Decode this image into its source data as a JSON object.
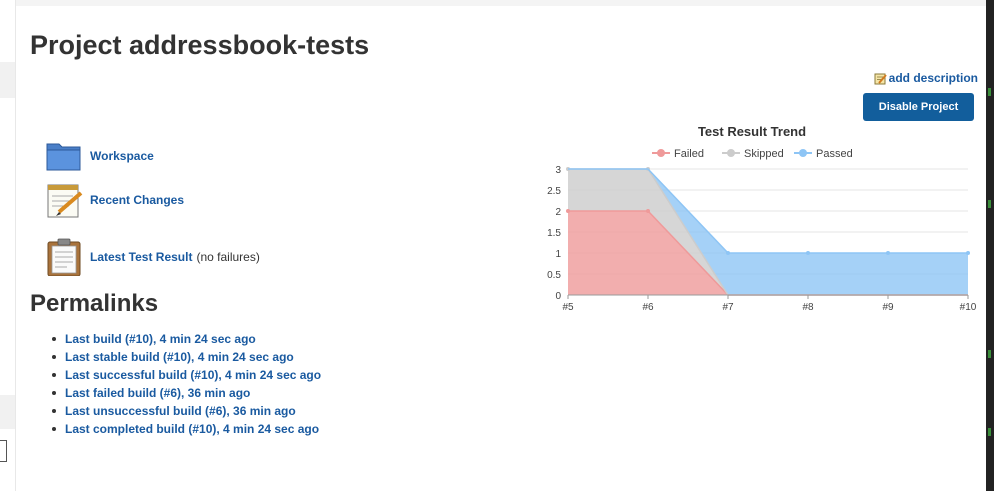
{
  "page": {
    "title": "Project addressbook-tests",
    "add_description": "add description",
    "disable_button": "Disable Project"
  },
  "tasks": [
    {
      "label": "Workspace",
      "icon": "folder-icon",
      "extra": ""
    },
    {
      "label": "Recent Changes",
      "icon": "notepad-icon",
      "extra": ""
    },
    {
      "label": "Latest Test Result",
      "icon": "clipboard-icon",
      "extra": "(no failures)"
    }
  ],
  "permalinks": {
    "title": "Permalinks",
    "items": [
      "Last build (#10), 4 min 24 sec ago",
      "Last stable build (#10), 4 min 24 sec ago",
      "Last successful build (#10), 4 min 24 sec ago",
      "Last failed build (#6), 36 min ago",
      "Last unsuccessful build (#6), 36 min ago",
      "Last completed build (#10), 4 min 24 sec ago"
    ]
  },
  "chart_data": {
    "type": "area",
    "title": "Test Result Trend",
    "categories": [
      "#5",
      "#6",
      "#7",
      "#8",
      "#9",
      "#10"
    ],
    "stacked": true,
    "ylim": [
      0,
      3
    ],
    "yticks": [
      "0",
      "0.5",
      "1",
      "1.5",
      "2",
      "2.5",
      "3"
    ],
    "legend_position": "top",
    "grid": true,
    "series": [
      {
        "name": "Failed",
        "values": [
          2,
          2,
          0,
          0,
          0,
          0
        ],
        "color": "#ef9a9a"
      },
      {
        "name": "Skipped",
        "values": [
          1,
          1,
          0,
          0,
          0,
          0
        ],
        "color": "#cccccc"
      },
      {
        "name": "Passed",
        "values": [
          0,
          0,
          1,
          1,
          1,
          1
        ],
        "color": "#8ec5f5"
      }
    ]
  },
  "colors": {
    "link": "#1a5aa0",
    "button": "#125e9c"
  }
}
